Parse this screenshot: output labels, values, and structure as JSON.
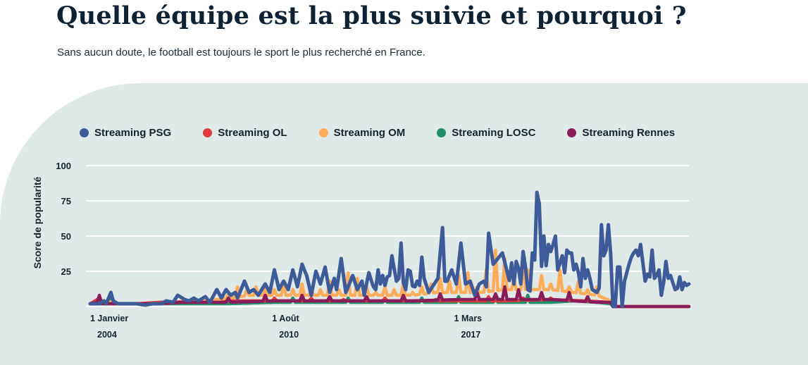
{
  "header": {
    "title": "Quelle équipe est la plus suivie et pourquoi ?",
    "subtitle": "Sans aucun doute, le football est toujours le sport le plus recherché en France."
  },
  "chart_data": {
    "type": "line",
    "ylabel": "Score de popularité",
    "ylim": [
      0,
      100
    ],
    "yticks": [
      25,
      50,
      75,
      100
    ],
    "grid": true,
    "legend_position": "top",
    "x_ticks": [
      {
        "x": 0,
        "line1": "1 Janvier",
        "line2": "2004"
      },
      {
        "x": 79,
        "line1": "1 Août",
        "line2": "2010"
      },
      {
        "x": 158,
        "line1": "1 Mars",
        "line2": "2017"
      }
    ],
    "x_count": 226,
    "series": [
      {
        "name": "Streaming PSG",
        "color": "#3d5a99",
        "anchors": [
          [
            0,
            2
          ],
          [
            4,
            2
          ],
          [
            6,
            4
          ],
          [
            7,
            2
          ],
          [
            9,
            10
          ],
          [
            10,
            4
          ],
          [
            12,
            2
          ],
          [
            20,
            2
          ],
          [
            24,
            1
          ],
          [
            27,
            2
          ],
          [
            31,
            2
          ],
          [
            33,
            4
          ],
          [
            36,
            3
          ],
          [
            38,
            8
          ],
          [
            41,
            5
          ],
          [
            43,
            4
          ],
          [
            45,
            6
          ],
          [
            47,
            4
          ],
          [
            50,
            7
          ],
          [
            52,
            3
          ],
          [
            55,
            12
          ],
          [
            57,
            6
          ],
          [
            59,
            12
          ],
          [
            61,
            8
          ],
          [
            63,
            10
          ],
          [
            64,
            6
          ],
          [
            67,
            18
          ],
          [
            69,
            10
          ],
          [
            71,
            12
          ],
          [
            73,
            8
          ],
          [
            76,
            16
          ],
          [
            78,
            10
          ],
          [
            80,
            26
          ],
          [
            82,
            12
          ],
          [
            84,
            18
          ],
          [
            86,
            12
          ],
          [
            88,
            26
          ],
          [
            90,
            14
          ],
          [
            92,
            30
          ],
          [
            94,
            22
          ],
          [
            96,
            8
          ],
          [
            98,
            25
          ],
          [
            100,
            16
          ],
          [
            102,
            28
          ],
          [
            104,
            10
          ],
          [
            106,
            20
          ],
          [
            107,
            12
          ],
          [
            109,
            34
          ],
          [
            111,
            10
          ],
          [
            114,
            22
          ],
          [
            116,
            12
          ],
          [
            118,
            18
          ],
          [
            119,
            8
          ],
          [
            121,
            24
          ],
          [
            123,
            14
          ],
          [
            125,
            10
          ],
          [
            127,
            22
          ],
          [
            129,
            8
          ],
          [
            131,
            36
          ],
          [
            133,
            18
          ],
          [
            135,
            22
          ],
          [
            137,
            12
          ],
          [
            139,
            15
          ],
          [
            141,
            14
          ],
          [
            142,
            18
          ],
          [
            144,
            12
          ],
          [
            145,
            20
          ],
          [
            147,
            10
          ],
          [
            149,
            15
          ],
          [
            151,
            20
          ],
          [
            153,
            56
          ],
          [
            155,
            18
          ],
          [
            157,
            26
          ],
          [
            159,
            16
          ],
          [
            161,
            45
          ],
          [
            163,
            16
          ],
          [
            165,
            18
          ],
          [
            167,
            8
          ],
          [
            169,
            16
          ],
          [
            171,
            18
          ],
          [
            173,
            52
          ],
          [
            175,
            30
          ],
          [
            177,
            34
          ],
          [
            179,
            38
          ],
          [
            181,
            25
          ],
          [
            183,
            12
          ],
          [
            185,
            20
          ],
          [
            187,
            16
          ],
          [
            189,
            28
          ],
          [
            190,
            12
          ],
          [
            192,
            38
          ],
          [
            194,
            28
          ],
          [
            195,
            12
          ],
          [
            197,
            45
          ],
          [
            198,
            46
          ],
          [
            199,
            44
          ],
          [
            200,
            47
          ],
          [
            201,
            44
          ],
          [
            202,
            50
          ],
          [
            203,
            26
          ],
          [
            205,
            36
          ],
          [
            206,
            24
          ],
          [
            207,
            22
          ],
          [
            208,
            27
          ],
          [
            209,
            20
          ],
          [
            210,
            26
          ],
          [
            211,
            30
          ],
          [
            212,
            40
          ],
          [
            213,
            14
          ],
          [
            214,
            34
          ],
          [
            215,
            24
          ],
          [
            216,
            26
          ],
          [
            217,
            20
          ],
          [
            218,
            12
          ],
          [
            220,
            10
          ],
          [
            222,
            16
          ],
          [
            224,
            14
          ],
          [
            226,
            6
          ]
        ],
        "peaks": [
          [
            125,
            26
          ],
          [
            129,
            21
          ],
          [
            135,
            45
          ],
          [
            138,
            26
          ],
          [
            139,
            25
          ],
          [
            144,
            35
          ],
          [
            154,
            18
          ],
          [
            172,
            14
          ],
          [
            177,
            34
          ],
          [
            183,
            31
          ],
          [
            185,
            32
          ],
          [
            186,
            27
          ],
          [
            188,
            39
          ],
          [
            191,
            11
          ],
          [
            194,
            81
          ],
          [
            195,
            73
          ],
          [
            197,
            50
          ],
          [
            198,
            29
          ],
          [
            200,
            39
          ],
          [
            207,
            40
          ],
          [
            208,
            38
          ],
          [
            209,
            38
          ],
          [
            212,
            24
          ],
          [
            215,
            20
          ],
          [
            222,
            58
          ],
          [
            223,
            36
          ],
          [
            224,
            40
          ],
          [
            225,
            58
          ],
          [
            226,
            38
          ],
          [
            229,
            28
          ],
          [
            230,
            28
          ],
          [
            232,
            18
          ],
          [
            233,
            24
          ],
          [
            234,
            30
          ],
          [
            235,
            35
          ],
          [
            236,
            38
          ],
          [
            237,
            40
          ],
          [
            238,
            36
          ],
          [
            239,
            44
          ],
          [
            240,
            31
          ],
          [
            241,
            18
          ],
          [
            242,
            23
          ],
          [
            243,
            21
          ],
          [
            244,
            40
          ],
          [
            245,
            20
          ],
          [
            246,
            22
          ],
          [
            247,
            26
          ],
          [
            248,
            8
          ],
          [
            249,
            17
          ],
          [
            250,
            32
          ],
          [
            251,
            20
          ],
          [
            252,
            22
          ],
          [
            253,
            17
          ],
          [
            254,
            12
          ],
          [
            255,
            13
          ],
          [
            256,
            21
          ],
          [
            257,
            12
          ],
          [
            258,
            17
          ],
          [
            259,
            15
          ],
          [
            260,
            16
          ]
        ]
      },
      {
        "name": "Streaming OL",
        "color": "#e03c3c",
        "anchors": [
          [
            0,
            2
          ],
          [
            4,
            6
          ],
          [
            6,
            2
          ],
          [
            20,
            2
          ],
          [
            30,
            3
          ],
          [
            60,
            4
          ],
          [
            90,
            4
          ],
          [
            120,
            4
          ],
          [
            150,
            4
          ],
          [
            180,
            4
          ],
          [
            200,
            5
          ],
          [
            215,
            4
          ],
          [
            226,
            3
          ]
        ],
        "peaks": [
          [
            60,
            5
          ],
          [
            80,
            6
          ],
          [
            96,
            6
          ],
          [
            110,
            5
          ],
          [
            128,
            6
          ],
          [
            150,
            5
          ],
          [
            173,
            7
          ],
          [
            188,
            6
          ],
          [
            200,
            6
          ]
        ]
      },
      {
        "name": "Streaming OM",
        "color": "#ffac5b",
        "anchors": [
          [
            0,
            2
          ],
          [
            8,
            4
          ],
          [
            10,
            2
          ],
          [
            20,
            2
          ],
          [
            30,
            2
          ],
          [
            40,
            3
          ],
          [
            50,
            4
          ],
          [
            60,
            6
          ],
          [
            70,
            8
          ],
          [
            80,
            8
          ],
          [
            90,
            8
          ],
          [
            100,
            8
          ],
          [
            110,
            8
          ],
          [
            120,
            8
          ],
          [
            130,
            8
          ],
          [
            140,
            8
          ],
          [
            150,
            10
          ],
          [
            160,
            10
          ],
          [
            170,
            10
          ],
          [
            180,
            12
          ],
          [
            190,
            12
          ],
          [
            200,
            12
          ],
          [
            210,
            10
          ],
          [
            220,
            8
          ],
          [
            226,
            4
          ]
        ],
        "peaks": [
          [
            60,
            9
          ],
          [
            64,
            14
          ],
          [
            68,
            12
          ],
          [
            72,
            14
          ],
          [
            76,
            16
          ],
          [
            80,
            12
          ],
          [
            84,
            16
          ],
          [
            88,
            12
          ],
          [
            92,
            16
          ],
          [
            96,
            13
          ],
          [
            100,
            12
          ],
          [
            104,
            18
          ],
          [
            108,
            12
          ],
          [
            112,
            24
          ],
          [
            116,
            20
          ],
          [
            120,
            14
          ],
          [
            124,
            10
          ],
          [
            128,
            14
          ],
          [
            132,
            12
          ],
          [
            136,
            16
          ],
          [
            140,
            10
          ],
          [
            144,
            14
          ],
          [
            148,
            16
          ],
          [
            152,
            20
          ],
          [
            156,
            18
          ],
          [
            160,
            22
          ],
          [
            164,
            24
          ],
          [
            168,
            14
          ],
          [
            172,
            26
          ],
          [
            176,
            40
          ],
          [
            180,
            34
          ],
          [
            184,
            20
          ],
          [
            188,
            34
          ],
          [
            190,
            26
          ],
          [
            196,
            22
          ],
          [
            200,
            16
          ],
          [
            204,
            26
          ],
          [
            208,
            14
          ],
          [
            212,
            18
          ],
          [
            216,
            12
          ],
          [
            220,
            14
          ]
        ]
      },
      {
        "name": "Streaming LOSC",
        "color": "#1f8f6b",
        "anchors": [
          [
            0,
            2
          ],
          [
            8,
            2
          ],
          [
            9,
            7
          ],
          [
            10,
            2
          ],
          [
            20,
            2
          ],
          [
            40,
            2
          ],
          [
            60,
            2
          ],
          [
            80,
            3
          ],
          [
            100,
            3
          ],
          [
            120,
            3
          ],
          [
            140,
            3
          ],
          [
            160,
            3
          ],
          [
            180,
            3
          ],
          [
            200,
            3
          ],
          [
            210,
            4
          ],
          [
            220,
            3
          ],
          [
            226,
            2
          ]
        ],
        "peaks": [
          [
            9,
            7
          ],
          [
            88,
            6
          ],
          [
            112,
            6
          ],
          [
            128,
            6
          ],
          [
            144,
            6
          ],
          [
            160,
            7
          ],
          [
            176,
            8
          ],
          [
            190,
            8
          ]
        ]
      },
      {
        "name": "Streaming Rennes",
        "color": "#8a1c59",
        "anchors": [
          [
            0,
            2
          ],
          [
            3,
            3
          ],
          [
            4,
            8
          ],
          [
            5,
            2
          ],
          [
            20,
            2
          ],
          [
            30,
            2
          ],
          [
            40,
            3
          ],
          [
            60,
            3
          ],
          [
            80,
            4
          ],
          [
            100,
            4
          ],
          [
            120,
            4
          ],
          [
            140,
            4
          ],
          [
            160,
            5
          ],
          [
            180,
            5
          ],
          [
            200,
            5
          ],
          [
            210,
            4
          ],
          [
            220,
            3
          ],
          [
            226,
            3
          ]
        ],
        "peaks": [
          [
            4,
            8
          ],
          [
            60,
            6
          ],
          [
            76,
            8
          ],
          [
            92,
            8
          ],
          [
            104,
            7
          ],
          [
            120,
            7
          ],
          [
            136,
            8
          ],
          [
            152,
            9
          ],
          [
            168,
            10
          ],
          [
            176,
            9
          ],
          [
            180,
            14
          ],
          [
            186,
            12
          ],
          [
            196,
            10
          ],
          [
            208,
            10
          ],
          [
            216,
            7
          ]
        ]
      }
    ]
  }
}
